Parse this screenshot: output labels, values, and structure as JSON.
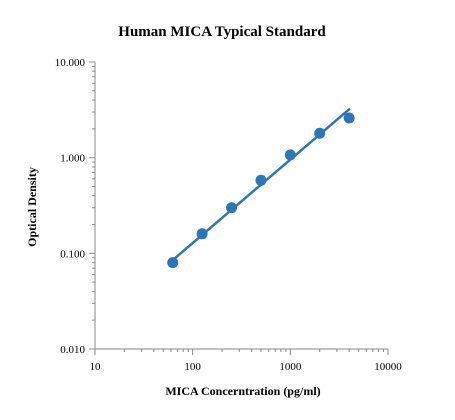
{
  "chart_data": {
    "type": "scatter",
    "title": "Human  MICA Typical Standard",
    "xlabel": "MICA Concerntration (pg/ml)",
    "ylabel": "Optical Density",
    "x_scale": "log",
    "y_scale": "log",
    "xlim": [
      10,
      10000
    ],
    "ylim": [
      0.01,
      10
    ],
    "x_ticks": [
      "10",
      "100",
      "1000",
      "10000"
    ],
    "y_ticks": [
      "0.010",
      "0.100",
      "1.000",
      "10.000"
    ],
    "grid": false,
    "legend": "none",
    "series": [
      {
        "points": [
          {
            "x": 62.5,
            "y": 0.08
          },
          {
            "x": 125,
            "y": 0.16
          },
          {
            "x": 250,
            "y": 0.3
          },
          {
            "x": 500,
            "y": 0.58
          },
          {
            "x": 1000,
            "y": 1.07
          },
          {
            "x": 2000,
            "y": 1.8
          },
          {
            "x": 4000,
            "y": 2.6
          }
        ],
        "trendline": {
          "x": [
            62.5,
            4000
          ],
          "y": [
            0.085,
            3.2
          ]
        }
      }
    ],
    "colors": {
      "series": "#2e75b6",
      "axis": "#888888"
    }
  }
}
